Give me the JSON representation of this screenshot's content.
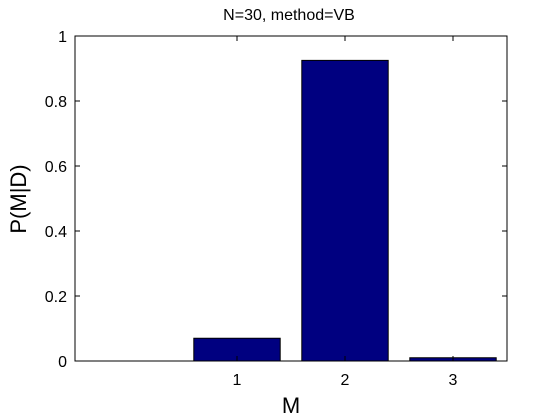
{
  "chart_data": {
    "type": "bar",
    "title": "N=30, method=VB",
    "xlabel": "M",
    "ylabel": "P(M|D)",
    "categories": [
      "1",
      "2",
      "3"
    ],
    "x": [
      1,
      2,
      3
    ],
    "values": [
      0.07,
      0.925,
      0.01
    ],
    "xlim": [
      -0.5,
      3.5
    ],
    "ylim": [
      0,
      1
    ],
    "yticks": [
      "0",
      "0.2",
      "0.4",
      "0.6",
      "0.8",
      "1"
    ],
    "ytick_values": [
      0,
      0.2,
      0.4,
      0.6,
      0.8,
      1
    ],
    "grid": false,
    "bar_color": "#000080",
    "edge_color": "#000000"
  }
}
